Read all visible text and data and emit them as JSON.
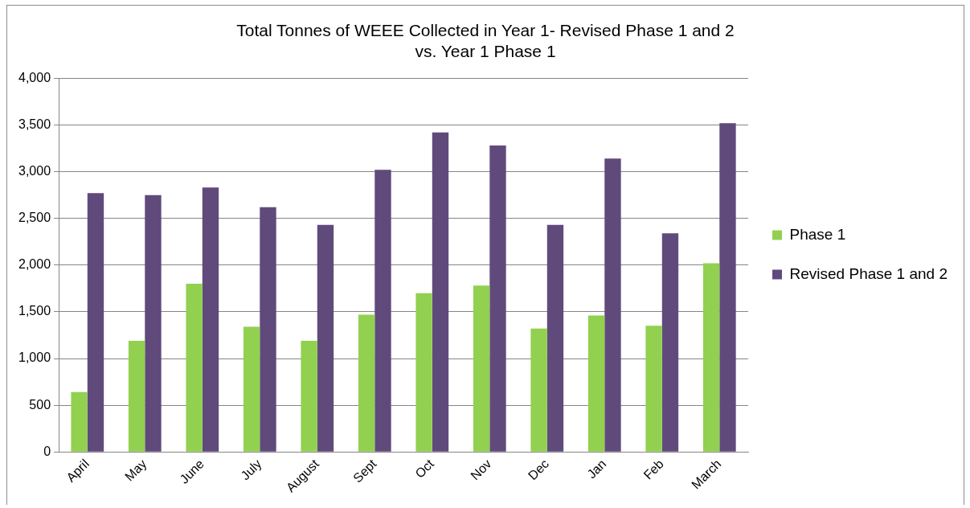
{
  "chart_data": {
    "type": "bar",
    "title": [
      "Total Tonnes of WEEE Collected in Year 1- Revised Phase 1 and 2",
      "vs. Year 1 Phase 1"
    ],
    "categories": [
      "April",
      "May",
      "June",
      "July",
      "August",
      "Sept",
      "Oct",
      "Nov",
      "Dec",
      "Jan",
      "Feb",
      "March"
    ],
    "series": [
      {
        "name": "Phase 1",
        "color": "#92d050",
        "values": [
          640,
          1190,
          1800,
          1340,
          1190,
          1470,
          1700,
          1780,
          1320,
          1460,
          1350,
          2020
        ]
      },
      {
        "name": "Revised Phase 1 and 2",
        "color": "#604a7b",
        "values": [
          2770,
          2750,
          2830,
          2620,
          2430,
          3020,
          3420,
          3280,
          2430,
          3140,
          2340,
          3520
        ]
      }
    ],
    "ylim": [
      0,
      4000
    ],
    "yticks": [
      {
        "value": 0,
        "label": "0"
      },
      {
        "value": 500,
        "label": "500"
      },
      {
        "value": 1000,
        "label": "1,000"
      },
      {
        "value": 1500,
        "label": "1,500"
      },
      {
        "value": 2000,
        "label": "2,000"
      },
      {
        "value": 2500,
        "label": "2,500"
      },
      {
        "value": 3000,
        "label": "3,000"
      },
      {
        "value": 3500,
        "label": "3,500"
      },
      {
        "value": 4000,
        "label": "4,000"
      }
    ],
    "grid": "y",
    "legend": "right"
  }
}
